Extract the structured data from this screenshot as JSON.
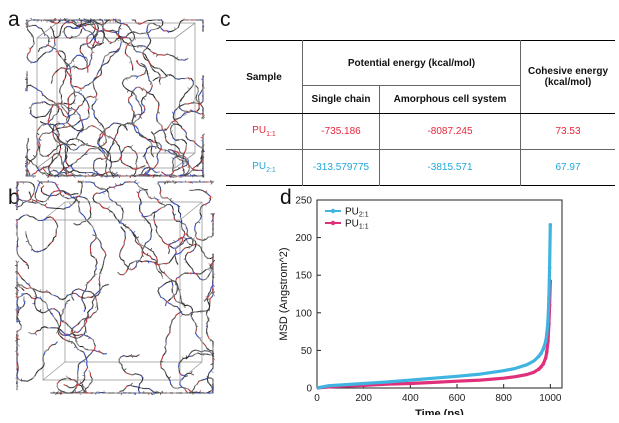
{
  "panels": {
    "a": "a",
    "b": "b",
    "c": "c",
    "d": "d"
  },
  "table": {
    "headers": {
      "sample": "Sample",
      "potential_energy": "Potential energy (kcal/mol)",
      "single_chain": "Single chain",
      "amorphous": "Amorphous cell system",
      "cohesive": "Cohesive energy (kcal/mol)"
    },
    "rows": [
      {
        "sample_main": "PU",
        "sample_sub": "1:1",
        "single_chain": "-735.186",
        "amorphous": "-8087.245",
        "cohesive": "73.53",
        "color": "#e8253a"
      },
      {
        "sample_main": "PU",
        "sample_sub": "2:1",
        "single_chain": "-313.579775",
        "amorphous": "-3815.571",
        "cohesive": "67.97",
        "color": "#1fa8d8"
      }
    ]
  },
  "chart_data": {
    "type": "line",
    "xlabel": "Time (ps)",
    "ylabel": "MSD (Angstrom^2)",
    "xlim": [
      0,
      1050
    ],
    "ylim": [
      0,
      250
    ],
    "xticks": [
      0,
      200,
      400,
      600,
      800,
      1000
    ],
    "yticks": [
      0,
      50,
      100,
      150,
      200,
      250
    ],
    "legend_position": "top-left",
    "series": [
      {
        "name_main": "PU",
        "name_sub": "2:1",
        "color": "#3fb4e0",
        "x": [
          0,
          50,
          100,
          200,
          300,
          400,
          500,
          600,
          700,
          800,
          850,
          900,
          930,
          950,
          960,
          970,
          980,
          985,
          990,
          994,
          997,
          1000
        ],
        "y": [
          0,
          3,
          4,
          6,
          8,
          10.5,
          13,
          15.5,
          18.5,
          23,
          26,
          31,
          36,
          42,
          46,
          52,
          62,
          72,
          90,
          120,
          160,
          217
        ]
      },
      {
        "name_main": "PU",
        "name_sub": "1:1",
        "color": "#e0307a",
        "x": [
          0,
          50,
          100,
          200,
          300,
          400,
          500,
          600,
          700,
          800,
          850,
          900,
          930,
          950,
          960,
          970,
          980,
          985,
          990,
          994,
          997,
          1000
        ],
        "y": [
          0,
          1.5,
          2.5,
          3.5,
          5,
          6,
          7.5,
          9,
          10.5,
          13,
          15,
          18,
          21,
          25,
          28,
          32,
          40,
          48,
          62,
          85,
          110,
          142
        ]
      }
    ]
  }
}
